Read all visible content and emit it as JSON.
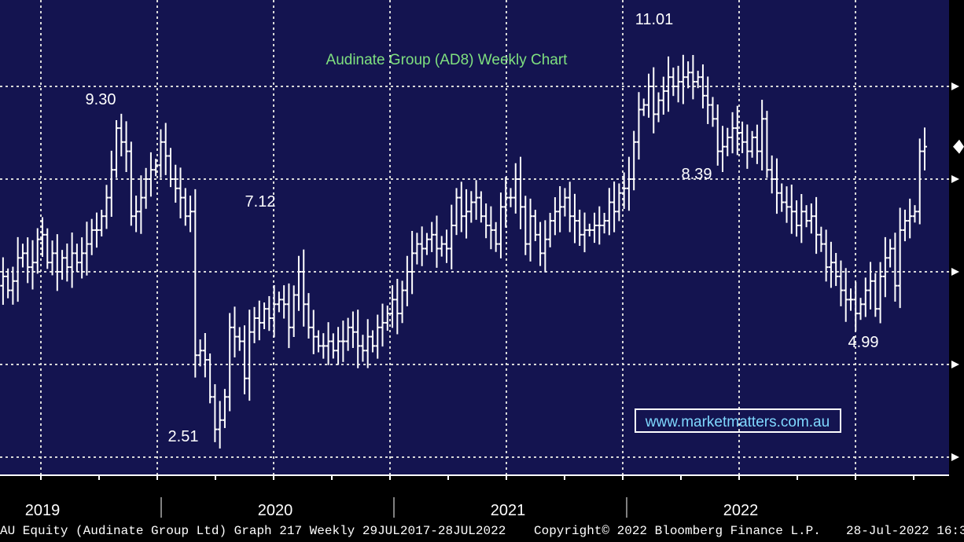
{
  "colors": {
    "plot_bg": "#141450",
    "axis_bg": "#000000",
    "bars": "#ffffff",
    "grid": "#d8d8d8",
    "title": "#7fe07f",
    "annotations": "#ffffff",
    "watermark_text": "#7fd8ff",
    "watermark_border": "#ffffff"
  },
  "chart_data": {
    "type": "ohlc",
    "title": "Audinate Group (AD8) Weekly Chart",
    "xlabel": "",
    "ylabel": "",
    "x_tick_labels": [
      "2019",
      "2020",
      "2021",
      "2022"
    ],
    "ylim": [
      1.9,
      12.0
    ],
    "y_gridlines": [
      2,
      4,
      6,
      8,
      10
    ],
    "grid": true,
    "annotations": [
      {
        "label": "9.30",
        "value": 9.3,
        "date": "2019-06"
      },
      {
        "label": "2.51",
        "value": 2.51,
        "date": "2020-03"
      },
      {
        "label": "7.12",
        "value": 7.12,
        "date": "2020-06"
      },
      {
        "label": "11.01",
        "value": 11.01,
        "date": "2021-04"
      },
      {
        "label": "8.39",
        "value": 8.39,
        "date": "2021-07"
      },
      {
        "label": "4.99",
        "value": 4.99,
        "date": "2022-05"
      }
    ],
    "weekly_closes_2018_12_to_2022_07": [
      6.1,
      5.7,
      5.9,
      5.6,
      5.8,
      6.3,
      6.4,
      6.1,
      6.2,
      6.7,
      6.8,
      6.2,
      6.4,
      6.0,
      6.3,
      6.1,
      6.4,
      6.2,
      6.4,
      6.6,
      6.9,
      6.9,
      7.2,
      7.6,
      8.2,
      9.1,
      8.8,
      8.6,
      7.2,
      7.3,
      7.6,
      8.0,
      8.2,
      8.3,
      8.8,
      8.5,
      8.0,
      7.8,
      7.6,
      7.2,
      7.3,
      4.2,
      4.3,
      4.1,
      3.3,
      2.6,
      2.8,
      3.3,
      4.8,
      4.6,
      4.5,
      3.7,
      4.7,
      5.0,
      4.9,
      5.2,
      5.0,
      5.3,
      5.4,
      5.3,
      4.8,
      5.5,
      6.0,
      5.3,
      4.8,
      4.6,
      4.4,
      4.4,
      4.5,
      4.3,
      4.5,
      4.5,
      4.8,
      4.7,
      4.4,
      4.3,
      4.6,
      4.4,
      4.8,
      4.9,
      5.1,
      5.4,
      5.1,
      5.6,
      6.0,
      6.4,
      6.6,
      6.5,
      6.7,
      6.8,
      6.5,
      6.6,
      6.5,
      7.0,
      7.6,
      7.2,
      7.3,
      7.5,
      7.6,
      7.2,
      7.0,
      6.9,
      6.6,
      7.4,
      7.6,
      7.6,
      8.0,
      7.4,
      6.6,
      7.2,
      6.8,
      6.4,
      6.7,
      7.1,
      7.3,
      7.4,
      7.6,
      7.2,
      7.1,
      6.8,
      6.9,
      6.9,
      7.0,
      7.0,
      7.1,
      7.5,
      7.3,
      7.7,
      7.8,
      8.0,
      8.8,
      9.5,
      9.6,
      10.0,
      9.4,
      9.7,
      9.9,
      10.2,
      10.0,
      10.1,
      10.2,
      10.3,
      10.1,
      10.2,
      9.8,
      9.6,
      9.3,
      8.6,
      8.7,
      8.9,
      9.1,
      9.0,
      8.8,
      8.6,
      8.9,
      8.6,
      9.3,
      8.2,
      8.0,
      7.7,
      7.5,
      7.4,
      7.3,
      7.0,
      7.3,
      7.1,
      7.2,
      6.8,
      6.6,
      6.1,
      6.2,
      5.9,
      5.6,
      5.4,
      5.4,
      5.1,
      5.3,
      5.6,
      5.8,
      5.2,
      5.9,
      6.3,
      6.5,
      5.7,
      6.9,
      7.1,
      7.2,
      7.3,
      8.6,
      8.7
    ]
  },
  "axis": {
    "years": [
      {
        "label": "2019",
        "date": "2019-01"
      },
      {
        "label": "2020",
        "date": "2020-01"
      },
      {
        "label": "2021",
        "date": "2021-01"
      },
      {
        "label": "2022",
        "date": "2022-01"
      }
    ]
  },
  "watermark": "www.marketmatters.com.au",
  "footer": {
    "left": "AU Equity (Audinate Group Ltd) Graph 217  Weekly 29JUL2017-28JUL2022",
    "middle": "Copyright© 2022 Bloomberg Finance L.P.",
    "right": "28-Jul-2022 16:3"
  }
}
